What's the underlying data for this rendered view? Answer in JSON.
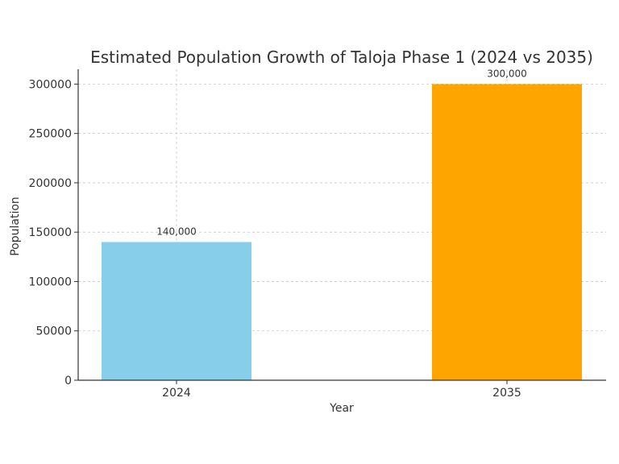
{
  "chart_data": {
    "type": "bar",
    "title": "Estimated Population Growth of Taloja Phase 1 (2024 vs 2035)",
    "xlabel": "Year",
    "ylabel": "Population",
    "categories": [
      "2024",
      "2035"
    ],
    "values": [
      140000,
      300000
    ],
    "data_labels": [
      "140,000",
      "300,000"
    ],
    "bar_colors": [
      "#87ceeb",
      "#ffa500"
    ],
    "ylim": [
      0,
      315000
    ],
    "yticks": [
      0,
      50000,
      100000,
      150000,
      200000,
      250000,
      300000
    ],
    "ytick_labels": [
      "0",
      "50000",
      "100000",
      "150000",
      "200000",
      "250000",
      "300000"
    ],
    "grid": true
  }
}
